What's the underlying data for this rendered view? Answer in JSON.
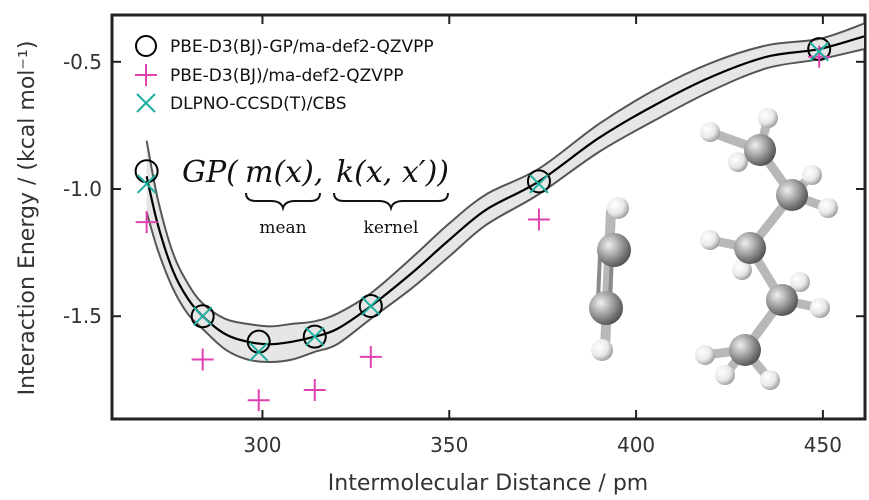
{
  "chart_data": {
    "type": "scatter",
    "xlabel": "Intermolecular Distance / pm",
    "ylabel": "Interaction Energy / (kcal mol⁻¹)",
    "xlim": [
      260,
      461
    ],
    "ylim": [
      -1.9,
      -0.32
    ],
    "xticks": [
      300,
      350,
      400,
      450
    ],
    "yticks": [
      -0.5,
      -1.0,
      -1.5
    ],
    "xtick_labels": [
      "300",
      "350",
      "400",
      "450"
    ],
    "ytick_labels": [
      "-0.5",
      "-1.0",
      "-1.5"
    ],
    "grid": false,
    "legend_position": "top-left",
    "series": [
      {
        "name": "PBE-D3(BJ)-GP/ma-def2-QZVPP",
        "marker": "circle",
        "color": "#000000",
        "x": [
          269,
          284,
          299,
          314,
          329,
          374,
          449
        ],
        "y": [
          -0.93,
          -1.5,
          -1.6,
          -1.58,
          -1.46,
          -0.97,
          -0.45
        ]
      },
      {
        "name": "PBE-D3(BJ)/ma-def2-QZVPP",
        "marker": "plus",
        "color": "#e040b0",
        "x": [
          269,
          284,
          299,
          314,
          329,
          374,
          449
        ],
        "y": [
          -1.13,
          -1.67,
          -1.83,
          -1.79,
          -1.66,
          -1.12,
          -0.48
        ]
      },
      {
        "name": "DLPNO-CCSD(T)/CBS",
        "marker": "x",
        "color": "#20b0a0",
        "x": [
          269,
          284,
          299,
          314,
          329,
          374,
          449
        ],
        "y": [
          -0.98,
          -1.5,
          -1.64,
          -1.58,
          -1.46,
          -0.98,
          -0.46
        ]
      }
    ],
    "gp_mean_curve": {
      "x": [
        269,
        272,
        276,
        280,
        284,
        290,
        296,
        302,
        308,
        314,
        320,
        329,
        340,
        350,
        360,
        374,
        390,
        405,
        420,
        435,
        449,
        461
      ],
      "y": [
        -0.95,
        -1.14,
        -1.32,
        -1.43,
        -1.5,
        -1.57,
        -1.6,
        -1.61,
        -1.6,
        -1.58,
        -1.55,
        -1.46,
        -1.33,
        -1.2,
        -1.08,
        -0.97,
        -0.8,
        -0.67,
        -0.56,
        -0.48,
        -0.45,
        -0.4
      ]
    },
    "gp_band_halfwidth": [
      0.14,
      0.1,
      0.07,
      0.06,
      0.05,
      0.06,
      0.07,
      0.07,
      0.07,
      0.06,
      0.06,
      0.05,
      0.06,
      0.065,
      0.06,
      0.05,
      0.055,
      0.06,
      0.055,
      0.045,
      0.04,
      0.05
    ],
    "band_fill_color": "#e6e6e6",
    "band_edge_color": "#555555",
    "annotation": {
      "prefix": "GP(",
      "m_term": "m(x),",
      "k_term": "k(x, x′))",
      "mean_label": "mean",
      "kernel_label": "kernel"
    }
  }
}
